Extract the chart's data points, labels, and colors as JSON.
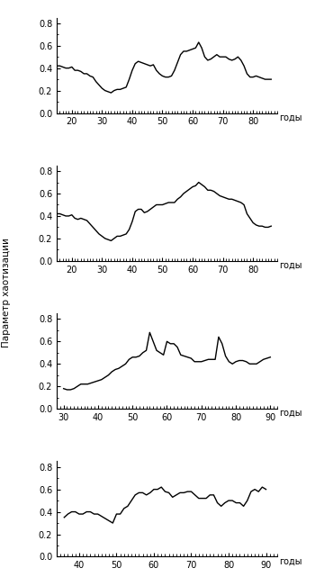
{
  "subplot_a": {
    "x": [
      15,
      16,
      17,
      18,
      19,
      20,
      21,
      22,
      23,
      24,
      25,
      26,
      27,
      28,
      29,
      30,
      31,
      32,
      33,
      34,
      35,
      36,
      37,
      38,
      39,
      40,
      41,
      42,
      43,
      44,
      45,
      46,
      47,
      48,
      49,
      50,
      51,
      52,
      53,
      54,
      55,
      56,
      57,
      58,
      59,
      60,
      61,
      62,
      63,
      64,
      65,
      66,
      67,
      68,
      69,
      70,
      71,
      72,
      73,
      74,
      75,
      76,
      77,
      78,
      79,
      80,
      81,
      82,
      83,
      84,
      85,
      86
    ],
    "y": [
      0.42,
      0.42,
      0.41,
      0.4,
      0.4,
      0.41,
      0.38,
      0.38,
      0.37,
      0.35,
      0.35,
      0.33,
      0.32,
      0.28,
      0.25,
      0.22,
      0.2,
      0.19,
      0.18,
      0.2,
      0.21,
      0.21,
      0.22,
      0.23,
      0.3,
      0.38,
      0.44,
      0.46,
      0.45,
      0.44,
      0.43,
      0.42,
      0.43,
      0.38,
      0.35,
      0.33,
      0.32,
      0.32,
      0.33,
      0.38,
      0.45,
      0.52,
      0.55,
      0.55,
      0.56,
      0.57,
      0.58,
      0.63,
      0.58,
      0.5,
      0.47,
      0.48,
      0.5,
      0.52,
      0.5,
      0.5,
      0.5,
      0.48,
      0.47,
      0.48,
      0.5,
      0.47,
      0.42,
      0.35,
      0.32,
      0.32,
      0.33,
      0.32,
      0.31,
      0.3,
      0.3,
      0.3
    ],
    "xlim": [
      15,
      88
    ],
    "xticks": [
      20,
      30,
      40,
      50,
      60,
      70,
      80
    ],
    "ylim": [
      0.0,
      0.85
    ],
    "yticks": [
      0.0,
      0.2,
      0.4,
      0.6,
      0.8
    ]
  },
  "subplot_b": {
    "x": [
      15,
      16,
      17,
      18,
      19,
      20,
      21,
      22,
      23,
      24,
      25,
      26,
      27,
      28,
      29,
      30,
      31,
      32,
      33,
      34,
      35,
      36,
      37,
      38,
      39,
      40,
      41,
      42,
      43,
      44,
      45,
      46,
      47,
      48,
      49,
      50,
      51,
      52,
      53,
      54,
      55,
      56,
      57,
      58,
      59,
      60,
      61,
      62,
      63,
      64,
      65,
      66,
      67,
      68,
      69,
      70,
      71,
      72,
      73,
      74,
      75,
      76,
      77,
      78,
      79,
      80,
      81,
      82,
      83,
      84,
      85,
      86
    ],
    "y": [
      0.42,
      0.42,
      0.41,
      0.4,
      0.4,
      0.41,
      0.38,
      0.37,
      0.38,
      0.37,
      0.36,
      0.33,
      0.3,
      0.27,
      0.24,
      0.22,
      0.2,
      0.19,
      0.18,
      0.2,
      0.22,
      0.22,
      0.23,
      0.24,
      0.28,
      0.35,
      0.44,
      0.46,
      0.46,
      0.43,
      0.44,
      0.46,
      0.48,
      0.5,
      0.5,
      0.5,
      0.51,
      0.52,
      0.52,
      0.52,
      0.55,
      0.57,
      0.6,
      0.62,
      0.64,
      0.66,
      0.67,
      0.7,
      0.68,
      0.66,
      0.63,
      0.63,
      0.62,
      0.6,
      0.58,
      0.57,
      0.56,
      0.55,
      0.55,
      0.54,
      0.53,
      0.52,
      0.5,
      0.42,
      0.38,
      0.34,
      0.32,
      0.31,
      0.31,
      0.3,
      0.3,
      0.31
    ],
    "xlim": [
      15,
      88
    ],
    "xticks": [
      20,
      30,
      40,
      50,
      60,
      70,
      80
    ],
    "ylim": [
      0.0,
      0.85
    ],
    "yticks": [
      0.0,
      0.2,
      0.4,
      0.6,
      0.8
    ]
  },
  "subplot_v": {
    "x": [
      30,
      31,
      32,
      33,
      34,
      35,
      36,
      37,
      38,
      39,
      40,
      41,
      42,
      43,
      44,
      45,
      46,
      47,
      48,
      49,
      50,
      51,
      52,
      53,
      54,
      55,
      56,
      57,
      58,
      59,
      60,
      61,
      62,
      63,
      64,
      65,
      66,
      67,
      68,
      69,
      70,
      71,
      72,
      73,
      74,
      75,
      76,
      77,
      78,
      79,
      80,
      81,
      82,
      83,
      84,
      85,
      86,
      87,
      88,
      89,
      90
    ],
    "y": [
      0.18,
      0.17,
      0.17,
      0.18,
      0.2,
      0.22,
      0.22,
      0.22,
      0.23,
      0.24,
      0.25,
      0.26,
      0.28,
      0.3,
      0.33,
      0.35,
      0.36,
      0.38,
      0.4,
      0.44,
      0.46,
      0.46,
      0.47,
      0.5,
      0.52,
      0.68,
      0.6,
      0.52,
      0.5,
      0.48,
      0.6,
      0.58,
      0.58,
      0.55,
      0.48,
      0.47,
      0.46,
      0.45,
      0.42,
      0.42,
      0.42,
      0.43,
      0.44,
      0.44,
      0.44,
      0.64,
      0.58,
      0.47,
      0.42,
      0.4,
      0.42,
      0.43,
      0.43,
      0.42,
      0.4,
      0.4,
      0.4,
      0.42,
      0.44,
      0.45,
      0.46
    ],
    "xlim": [
      28,
      92
    ],
    "xticks": [
      30,
      40,
      50,
      60,
      70,
      80,
      90
    ],
    "ylim": [
      0.0,
      0.85
    ],
    "yticks": [
      0.0,
      0.2,
      0.4,
      0.6,
      0.8
    ]
  },
  "subplot_g": {
    "x": [
      36,
      37,
      38,
      39,
      40,
      41,
      42,
      43,
      44,
      45,
      46,
      47,
      48,
      49,
      50,
      51,
      52,
      53,
      54,
      55,
      56,
      57,
      58,
      59,
      60,
      61,
      62,
      63,
      64,
      65,
      66,
      67,
      68,
      69,
      70,
      71,
      72,
      73,
      74,
      75,
      76,
      77,
      78,
      79,
      80,
      81,
      82,
      83,
      84,
      85,
      86,
      87,
      88,
      89,
      90
    ],
    "y": [
      0.35,
      0.38,
      0.4,
      0.4,
      0.38,
      0.38,
      0.4,
      0.4,
      0.38,
      0.38,
      0.36,
      0.34,
      0.32,
      0.3,
      0.38,
      0.38,
      0.43,
      0.45,
      0.5,
      0.55,
      0.57,
      0.57,
      0.55,
      0.57,
      0.6,
      0.6,
      0.62,
      0.58,
      0.57,
      0.53,
      0.55,
      0.57,
      0.57,
      0.58,
      0.58,
      0.55,
      0.52,
      0.52,
      0.52,
      0.55,
      0.55,
      0.48,
      0.45,
      0.48,
      0.5,
      0.5,
      0.48,
      0.48,
      0.45,
      0.5,
      0.58,
      0.6,
      0.58,
      0.62,
      0.6
    ],
    "xlim": [
      34,
      93
    ],
    "xticks": [
      40,
      50,
      60,
      70,
      80,
      90
    ],
    "ylim": [
      0.0,
      0.85
    ],
    "yticks": [
      0.0,
      0.2,
      0.4,
      0.6,
      0.8
    ]
  },
  "ylabel": "Параметр хаотизации",
  "xlabel_label": "годы",
  "background": "#ffffff",
  "line_color": "#000000",
  "line_width": 1.0
}
